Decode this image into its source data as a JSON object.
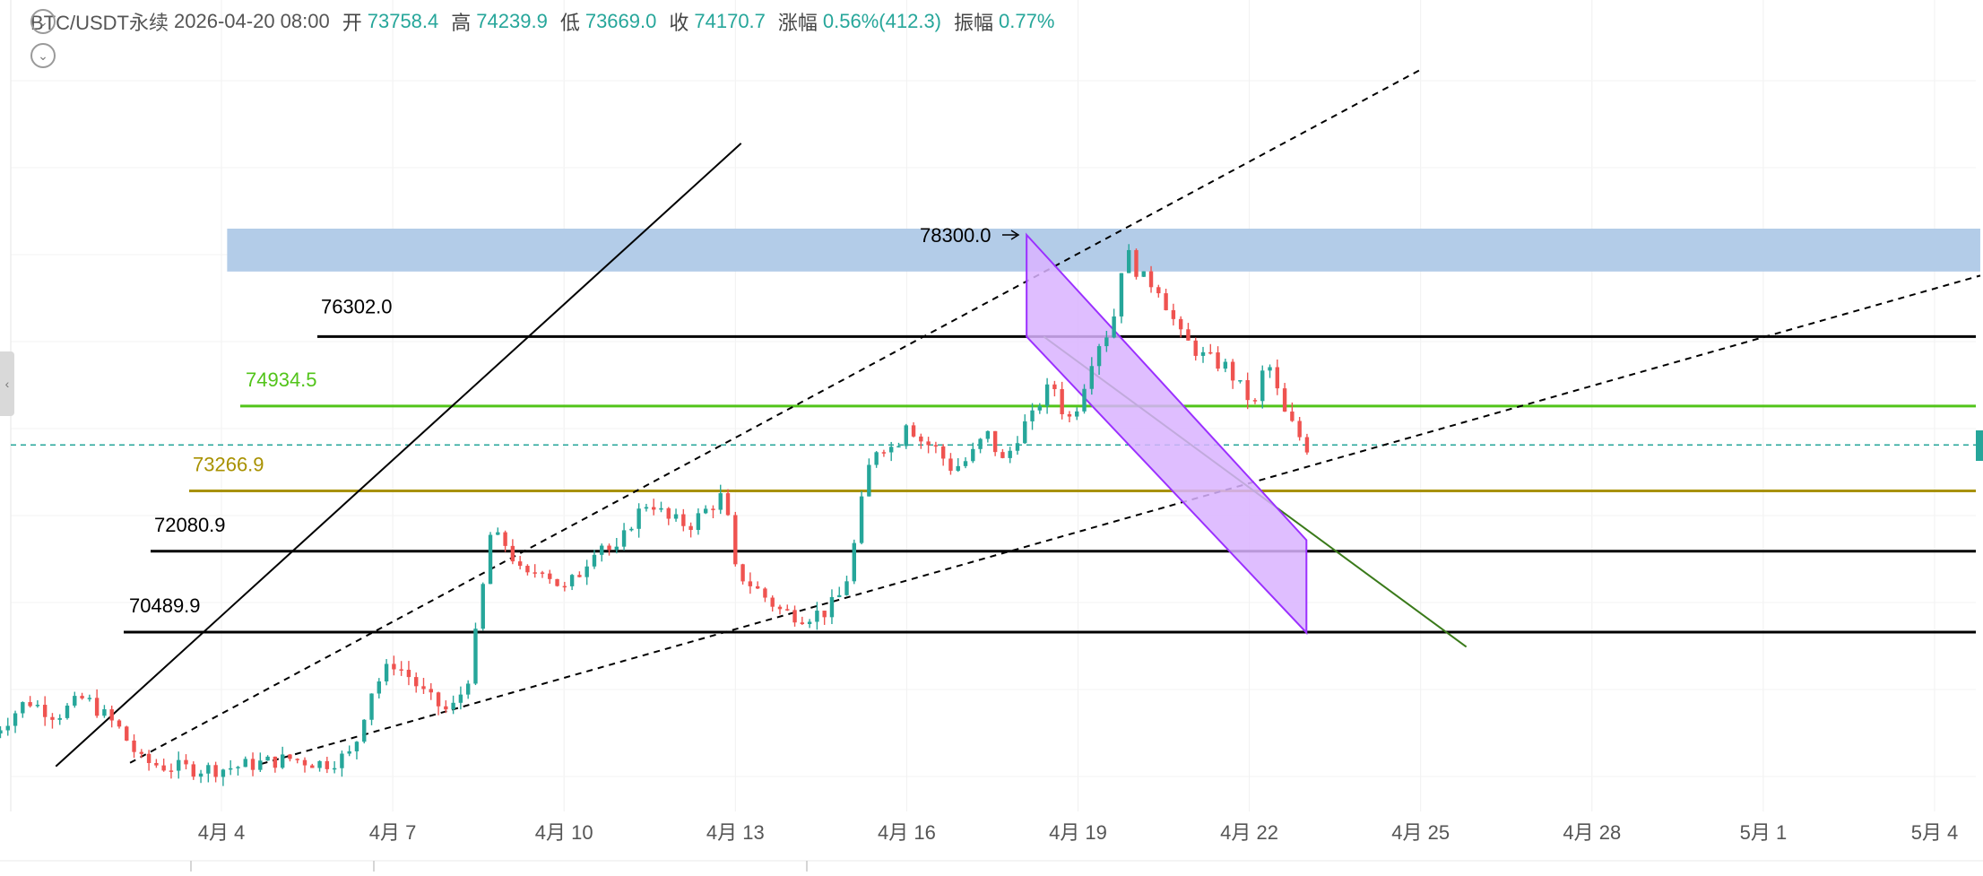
{
  "header": {
    "symbol": "BTC/USDT永续",
    "datetime": "2026-04-20 08:00",
    "open_label": "开",
    "open": "73758.4",
    "high_label": "高",
    "high": "74239.9",
    "low_label": "低",
    "low": "73669.0",
    "close_label": "收",
    "close": "74170.7",
    "change_label": "涨幅",
    "change": "0.56%(412.3)",
    "amplitude_label": "振幅",
    "amplitude": "0.77%"
  },
  "icons": {
    "collapse": "chevron-down-icon",
    "expand": "chevron-down-icon",
    "left_handle": "chevron-left-icon"
  },
  "colors": {
    "up": "#26a69a",
    "down": "#ef5350",
    "green_level": "#52c41a",
    "olive_level": "#a89100",
    "channel_fill": "#d9b3ff",
    "channel_stroke": "#9b30ff",
    "zone_fill": "#b3cce8",
    "trend_green": "#3a7a1a"
  },
  "chart_data": {
    "type": "candlestick",
    "x_ticks": [
      "4月 4",
      "4月 7",
      "4月 10",
      "4月 13",
      "4月 16",
      "4月 19",
      "4月 22",
      "4月 25",
      "4月 28",
      "5月 1",
      "5月 4"
    ],
    "x_tick_days": [
      4,
      7,
      10,
      13,
      16,
      19,
      22,
      25,
      28,
      31,
      34
    ],
    "date_origin_day": 4,
    "levels": [
      {
        "label": "78300.0",
        "price": 78300.0,
        "color": "#000000"
      },
      {
        "label": "76302.0",
        "price": 76302.0,
        "color": "#000000"
      },
      {
        "label": "74934.5",
        "price": 74934.5,
        "color": "#52c41a"
      },
      {
        "label": "73266.9",
        "price": 73266.9,
        "color": "#a89100"
      },
      {
        "label": "72080.9",
        "price": 72080.9,
        "color": "#000000"
      },
      {
        "label": "70489.9",
        "price": 70489.9,
        "color": "#000000"
      }
    ],
    "resistance_zone": {
      "from_day": 4.1,
      "to_day": 34.8,
      "low": 77580,
      "high": 78300
    },
    "current_price": 74170.7,
    "descending_channel": {
      "top_start": {
        "day": 18.1,
        "price": 78300
      },
      "top_end": {
        "day": 23.0,
        "price": 72300
      },
      "bottom_start": {
        "day": 18.1,
        "price": 76300
      },
      "bottom_end": {
        "day": 23.0,
        "price": 70480
      }
    },
    "trendlines": [
      {
        "style": "solid",
        "color": "#000000",
        "from": {
          "day": 1.1,
          "price": 67850
        },
        "to": {
          "day": 13.1,
          "price": 80100
        }
      },
      {
        "style": "dashed",
        "color": "#000000",
        "from": {
          "day": 2.4,
          "price": 67920
        },
        "to": {
          "day": 25.0,
          "price": 81550
        }
      },
      {
        "style": "dashed",
        "color": "#000000",
        "from": {
          "day": 4.7,
          "price": 67900
        },
        "to": {
          "day": 34.8,
          "price": 77500
        }
      },
      {
        "style": "solid",
        "color": "#3a7a1a",
        "from": {
          "day": 18.4,
          "price": 76300
        },
        "to": {
          "day": 25.8,
          "price": 70200
        }
      }
    ],
    "price_points": [
      [
        0.0,
        68500
      ],
      [
        0.6,
        69150
      ],
      [
        1.1,
        68850
      ],
      [
        1.6,
        69200
      ],
      [
        2.2,
        68600
      ],
      [
        2.6,
        67950
      ],
      [
        3.0,
        67850
      ],
      [
        3.5,
        67800
      ],
      [
        4.0,
        67800
      ],
      [
        4.6,
        67900
      ],
      [
        5.2,
        68000
      ],
      [
        5.8,
        67900
      ],
      [
        6.3,
        68100
      ],
      [
        6.6,
        69300
      ],
      [
        7.0,
        69900
      ],
      [
        7.3,
        69600
      ],
      [
        7.6,
        69200
      ],
      [
        8.0,
        68900
      ],
      [
        8.3,
        69500
      ],
      [
        8.5,
        70700
      ],
      [
        8.7,
        72400
      ],
      [
        9.0,
        72200
      ],
      [
        9.3,
        71500
      ],
      [
        9.6,
        71800
      ],
      [
        10.0,
        71300
      ],
      [
        10.3,
        71700
      ],
      [
        10.6,
        72300
      ],
      [
        10.9,
        72000
      ],
      [
        11.2,
        72700
      ],
      [
        11.5,
        73100
      ],
      [
        11.8,
        72700
      ],
      [
        12.2,
        72600
      ],
      [
        12.5,
        72900
      ],
      [
        12.8,
        73200
      ],
      [
        13.0,
        71700
      ],
      [
        13.4,
        71300
      ],
      [
        13.8,
        70900
      ],
      [
        14.2,
        70800
      ],
      [
        14.6,
        70900
      ],
      [
        14.9,
        71300
      ],
      [
        15.1,
        72300
      ],
      [
        15.3,
        73600
      ],
      [
        15.5,
        74200
      ],
      [
        15.8,
        74100
      ],
      [
        16.0,
        74700
      ],
      [
        16.2,
        74300
      ],
      [
        16.5,
        74100
      ],
      [
        16.8,
        73700
      ],
      [
        17.1,
        73900
      ],
      [
        17.4,
        74400
      ],
      [
        17.7,
        73800
      ],
      [
        18.0,
        74500
      ],
      [
        18.2,
        74700
      ],
      [
        18.4,
        75200
      ],
      [
        18.6,
        75300
      ],
      [
        18.8,
        74600
      ],
      [
        19.0,
        75000
      ],
      [
        19.3,
        76100
      ],
      [
        19.6,
        76500
      ],
      [
        19.75,
        77650
      ],
      [
        19.9,
        77900
      ],
      [
        20.1,
        77450
      ],
      [
        20.4,
        77300
      ],
      [
        20.8,
        76300
      ],
      [
        21.2,
        75900
      ],
      [
        21.6,
        75700
      ],
      [
        21.9,
        75200
      ],
      [
        22.1,
        74950
      ],
      [
        22.3,
        75900
      ],
      [
        22.6,
        74800
      ],
      [
        22.9,
        74300
      ],
      [
        23.1,
        74000
      ]
    ]
  }
}
